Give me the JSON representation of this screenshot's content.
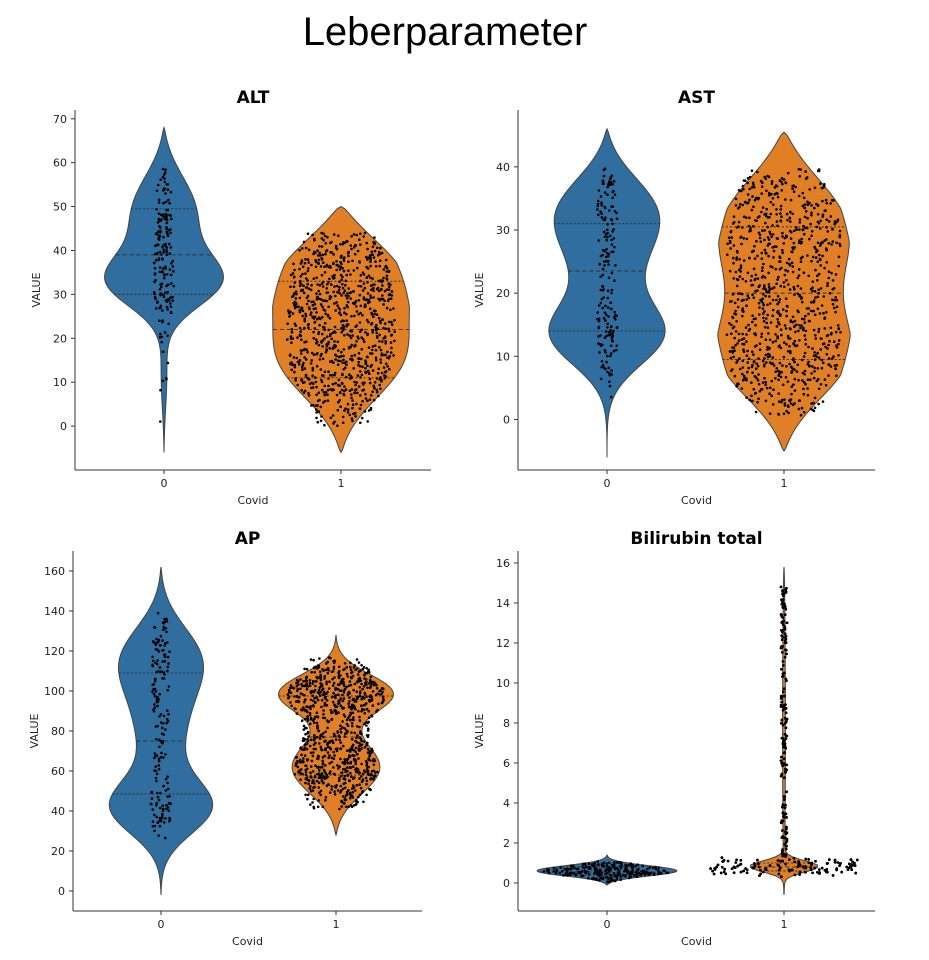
{
  "slide": {
    "title": "Leberparameter"
  },
  "colors": {
    "covid_0": "#2f6e9e",
    "covid_1": "#e07f26",
    "points": "#000000",
    "axis": "#333333"
  },
  "chart_data": [
    {
      "type": "violin",
      "title": "ALT",
      "xlabel": "Covid",
      "ylabel": "VALUE",
      "categories": [
        "0",
        "1"
      ],
      "ylim": [
        -10,
        72
      ],
      "yticks": [
        0,
        10,
        20,
        30,
        40,
        50,
        60,
        70
      ],
      "series": [
        {
          "category": "0",
          "min": 1,
          "max": 60,
          "q1": 30,
          "median": 39,
          "q3": 49.5,
          "kde_extent": [
            -6,
            68
          ]
        },
        {
          "category": "1",
          "min": 0,
          "max": 44,
          "q1": 11,
          "median": 22,
          "q3": 33,
          "kde_extent": [
            -6,
            50
          ]
        }
      ],
      "grid": false
    },
    {
      "type": "violin",
      "title": "AST",
      "xlabel": "Covid",
      "ylabel": "VALUE",
      "categories": [
        "0",
        "1"
      ],
      "ylim": [
        -8,
        49
      ],
      "yticks": [
        0,
        10,
        20,
        30,
        40
      ],
      "series": [
        {
          "category": "0",
          "min": 0.5,
          "max": 40,
          "q1": 14,
          "median": 23.5,
          "q3": 31,
          "kde_extent": [
            -6,
            46
          ]
        },
        {
          "category": "1",
          "min": 0.5,
          "max": 40,
          "q1": 9.5,
          "median": 20,
          "q3": 30.5,
          "kde_extent": [
            -5,
            45.5
          ]
        }
      ],
      "grid": false
    },
    {
      "type": "violin",
      "title": "AP",
      "xlabel": "Covid",
      "ylabel": "VALUE",
      "categories": [
        "0",
        "1"
      ],
      "ylim": [
        -10,
        170
      ],
      "yticks": [
        0,
        20,
        40,
        60,
        80,
        100,
        120,
        140,
        160
      ],
      "series": [
        {
          "category": "0",
          "min": 21,
          "max": 140,
          "q1": 48.5,
          "median": 75,
          "q3": 109,
          "kde_extent": [
            -2,
            162
          ]
        },
        {
          "category": "1",
          "min": 41,
          "max": 117,
          "q1": 58,
          "median": 77,
          "q3": 97.5,
          "kde_extent": [
            28,
            128
          ]
        }
      ],
      "grid": false
    },
    {
      "type": "violin",
      "title": "Bilirubin total",
      "xlabel": "Covid",
      "ylabel": "VALUE",
      "categories": [
        "0",
        "1"
      ],
      "ylim": [
        -1.4,
        16.6
      ],
      "yticks": [
        0,
        2,
        4,
        6,
        8,
        10,
        12,
        14,
        16
      ],
      "series": [
        {
          "category": "0",
          "min": 0,
          "max": 1.1,
          "q1": 0.4,
          "median": 0.55,
          "q3": 0.8,
          "kde_extent": [
            -0.1,
            1.4
          ]
        },
        {
          "category": "1",
          "min": 0.3,
          "max": 15,
          "q1": 0.6,
          "median": 0.8,
          "q3": 1.0,
          "kde_extent": [
            -0.6,
            15.8
          ]
        }
      ],
      "grid": false
    }
  ]
}
